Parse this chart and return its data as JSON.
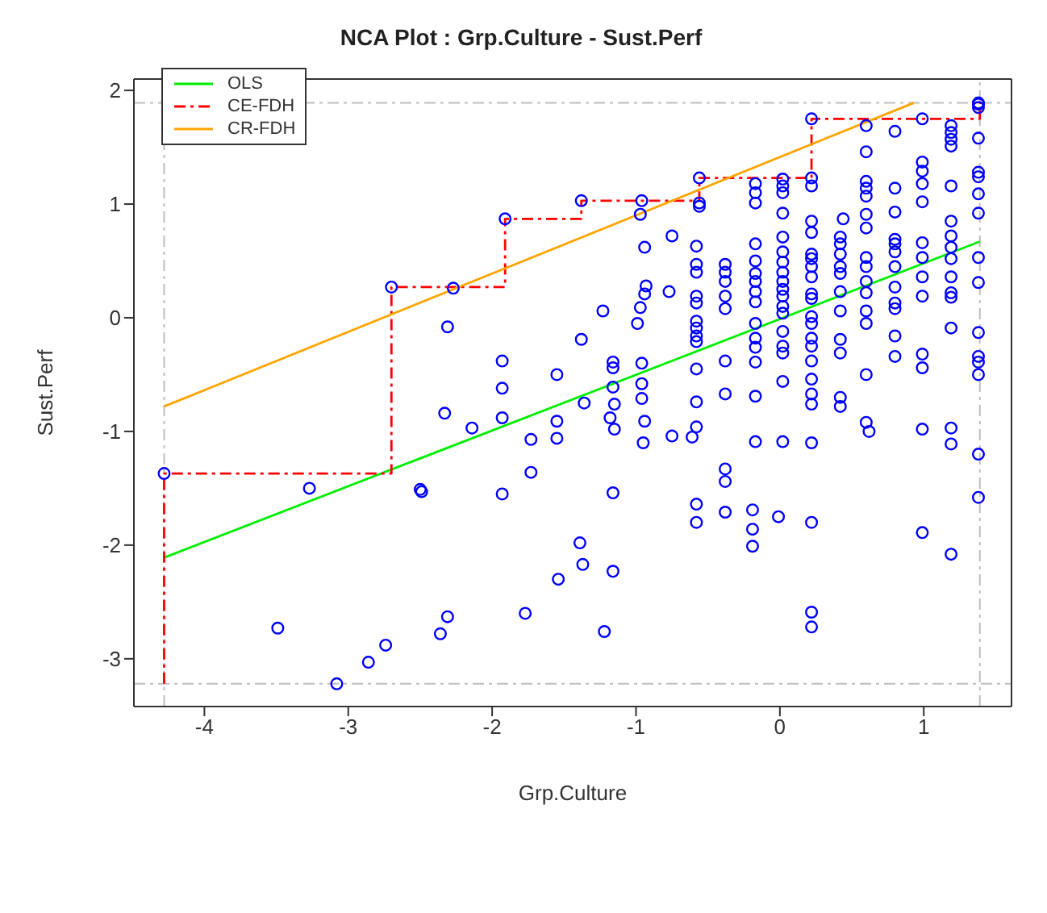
{
  "chart_data": {
    "type": "scatter",
    "title": "NCA Plot : Grp.Culture - Sust.Perf",
    "xlabel": "Grp.Culture",
    "ylabel": "Sust.Perf",
    "xlim": [
      -4.49,
      1.61
    ],
    "ylim": [
      -3.42,
      2.1
    ],
    "xticks": [
      -4,
      -3,
      -2,
      -1,
      0,
      1
    ],
    "yticks": [
      -3,
      -2,
      -1,
      0,
      1,
      2
    ],
    "legend": "top left",
    "ref_lines": [
      {
        "axis": "x",
        "value": -4.28,
        "label": null,
        "color": "#bebebe",
        "line_style": "dashed"
      },
      {
        "axis": "x",
        "value": 1.39,
        "label": null,
        "color": "#bebebe",
        "line_style": "dashed"
      },
      {
        "axis": "y",
        "value": 1.89,
        "label": null,
        "color": "#bebebe",
        "line_style": "dashed"
      },
      {
        "axis": "y",
        "value": -3.22,
        "label": null,
        "color": "#bebebe",
        "line_style": "dashed"
      }
    ],
    "series": [
      {
        "type": "scatter",
        "color": "#0000ff",
        "marker": "circle",
        "x": [
          -4.28,
          -3.27,
          -2.49,
          -3.49,
          -2.74,
          -2.86,
          -3.08,
          -2.36,
          -2.31,
          -1.77,
          -1.54,
          -1.37,
          -1.39,
          -1.16,
          -1.22,
          -2.5,
          -1.93,
          -1.73,
          -1.73,
          -1.16,
          -2.14,
          -1.55,
          -1.55,
          -2.7,
          -2.27,
          -1.91,
          -1.38,
          -0.96,
          -0.97,
          -0.56,
          -0.56,
          -0.56,
          -2.31,
          -2.33,
          -1.93,
          -1.93,
          -1.93,
          -1.55,
          -1.38,
          -1.23,
          -1.36,
          -1.16,
          -1.16,
          -1.16,
          -1.15,
          -1.18,
          -0.94,
          -0.93,
          -0.94,
          -0.97,
          -0.99,
          -0.96,
          -0.96,
          -0.96,
          -0.94,
          -0.75,
          -0.77,
          -0.75,
          -0.95,
          -0.61,
          -1.15,
          -0.58,
          -0.58,
          -0.58,
          -0.58,
          -0.58,
          -0.58,
          -0.58,
          -0.58,
          -0.58,
          -0.58,
          -0.58,
          -0.58,
          -0.58,
          -0.58,
          -0.38,
          -0.38,
          -0.38,
          -0.38,
          -0.38,
          -0.38,
          -0.38,
          -0.38,
          -0.38,
          -0.38,
          -0.17,
          -0.17,
          -0.17,
          -0.17,
          -0.17,
          -0.17,
          -0.17,
          -0.17,
          -0.17,
          -0.17,
          -0.17,
          -0.17,
          -0.17,
          -0.17,
          -0.17,
          -0.19,
          -0.19,
          -0.19,
          0.02,
          0.02,
          0.02,
          0.02,
          0.02,
          0.02,
          0.02,
          0.02,
          0.02,
          0.02,
          0.02,
          0.02,
          0.02,
          0.02,
          0.02,
          0.02,
          0.02,
          0.02,
          -0.01,
          0.22,
          0.22,
          0.22,
          0.22,
          0.22,
          0.22,
          0.22,
          0.22,
          0.22,
          0.22,
          0.22,
          0.22,
          0.22,
          0.22,
          0.22,
          0.22,
          0.22,
          0.22,
          0.22,
          0.22,
          0.22,
          0.22,
          0.22,
          0.42,
          0.42,
          0.42,
          0.42,
          0.42,
          0.42,
          0.42,
          0.42,
          0.42,
          0.42,
          0.42,
          0.44,
          0.6,
          0.6,
          0.6,
          0.6,
          0.6,
          0.6,
          0.6,
          0.6,
          0.6,
          0.6,
          0.6,
          0.6,
          0.6,
          0.6,
          0.6,
          0.62,
          0.8,
          0.8,
          0.8,
          0.8,
          0.8,
          0.8,
          0.8,
          0.8,
          0.8,
          0.8,
          0.8,
          0.8,
          0.99,
          0.99,
          0.99,
          0.99,
          0.99,
          0.99,
          0.99,
          0.99,
          0.99,
          0.99,
          0.99,
          0.99,
          0.99,
          1.19,
          1.19,
          1.19,
          1.19,
          1.19,
          1.19,
          1.19,
          1.19,
          1.19,
          1.19,
          1.19,
          1.19,
          1.19,
          1.19,
          1.19,
          1.19,
          1.38,
          1.38,
          1.38,
          1.38,
          1.38,
          1.38,
          1.38,
          1.38,
          1.38,
          1.38,
          1.38,
          1.38,
          1.38,
          1.38,
          1.38,
          1.38
        ],
        "values": [
          -1.37,
          -1.5,
          -1.53,
          -2.73,
          -2.88,
          -3.03,
          -3.22,
          -2.78,
          -2.63,
          -2.6,
          -2.3,
          -2.17,
          -1.98,
          -2.23,
          -2.76,
          -1.51,
          -1.55,
          -1.36,
          -1.07,
          -1.54,
          -0.97,
          -1.06,
          -0.91,
          0.27,
          0.26,
          0.87,
          1.03,
          1.03,
          0.91,
          1.23,
          1.01,
          0.98,
          -0.08,
          -0.84,
          -0.38,
          -0.62,
          -0.88,
          -0.5,
          -0.19,
          0.06,
          -0.75,
          -0.39,
          -0.44,
          -0.61,
          -0.76,
          -0.88,
          0.62,
          0.28,
          0.21,
          0.09,
          -0.05,
          -0.4,
          -0.58,
          -0.71,
          -0.91,
          0.72,
          0.23,
          -1.04,
          -1.1,
          -1.05,
          -0.98,
          0.63,
          0.47,
          0.4,
          0.19,
          0.13,
          -0.03,
          -0.09,
          -0.16,
          -0.21,
          -0.45,
          -0.74,
          -0.96,
          -1.64,
          -1.8,
          0.47,
          0.4,
          0.32,
          0.19,
          0.08,
          -0.38,
          -0.67,
          -1.33,
          -1.44,
          -1.71,
          1.18,
          1.1,
          1.01,
          0.65,
          0.5,
          0.39,
          0.32,
          0.23,
          0.14,
          -0.05,
          -0.18,
          -0.26,
          -0.39,
          -0.69,
          -1.09,
          -1.69,
          -1.86,
          -2.01,
          1.22,
          1.16,
          1.1,
          0.92,
          0.71,
          0.58,
          0.49,
          0.4,
          0.32,
          0.25,
          0.19,
          0.1,
          0.04,
          -0.12,
          -0.25,
          -0.31,
          -0.56,
          -1.09,
          -1.75,
          1.75,
          1.23,
          1.16,
          0.85,
          0.75,
          0.56,
          0.52,
          0.45,
          0.36,
          0.21,
          0.17,
          0.01,
          -0.05,
          -0.18,
          -0.25,
          -0.38,
          -0.54,
          -0.67,
          -0.76,
          -1.1,
          -1.8,
          -2.59,
          -2.72,
          0.71,
          0.65,
          0.56,
          0.45,
          0.39,
          0.23,
          0.06,
          -0.19,
          -0.31,
          -0.7,
          -0.78,
          0.87,
          1.69,
          1.46,
          1.2,
          1.14,
          1.07,
          0.91,
          0.79,
          0.53,
          0.45,
          0.32,
          0.22,
          0.06,
          -0.05,
          -0.5,
          -0.92,
          -1.0,
          1.64,
          1.14,
          0.93,
          0.69,
          0.65,
          0.58,
          0.45,
          0.27,
          0.13,
          0.08,
          -0.16,
          -0.34,
          1.75,
          1.37,
          1.29,
          1.18,
          1.02,
          0.66,
          0.53,
          0.36,
          0.19,
          -0.32,
          -0.44,
          -0.98,
          -1.89,
          1.69,
          1.63,
          1.57,
          1.51,
          1.16,
          0.85,
          0.72,
          0.62,
          0.52,
          0.36,
          0.22,
          0.18,
          -0.09,
          -0.97,
          -1.11,
          -2.08,
          1.89,
          1.88,
          1.85,
          1.58,
          1.28,
          1.24,
          1.09,
          0.92,
          0.53,
          0.31,
          -0.13,
          -0.34,
          -0.39,
          -0.5,
          -1.2,
          -1.58
        ]
      },
      {
        "type": "line",
        "name": "OLS",
        "color": "#00ee00",
        "marker": "none",
        "line_style": "solid",
        "x": [
          -4.28,
          1.39
        ],
        "values": [
          -2.11,
          0.67
        ]
      },
      {
        "type": "line",
        "name": "CE-FDH",
        "color": "#ff0000",
        "marker": "none",
        "line_style": "dashed",
        "x": [
          -4.28,
          -4.28,
          -2.7,
          -2.7,
          -1.91,
          -1.91,
          -1.38,
          -1.38,
          -0.56,
          -0.56,
          0.22,
          0.22,
          1.39,
          1.39
        ],
        "values": [
          -3.22,
          -1.37,
          -1.37,
          0.27,
          0.27,
          0.87,
          0.87,
          1.03,
          1.03,
          1.23,
          1.23,
          1.75,
          1.75,
          1.89
        ]
      },
      {
        "type": "line",
        "name": "CR-FDH",
        "color": "#ffa500",
        "marker": "none",
        "line_style": "solid",
        "x": [
          -4.28,
          0.93
        ],
        "values": [
          -0.78,
          1.89
        ]
      }
    ]
  }
}
